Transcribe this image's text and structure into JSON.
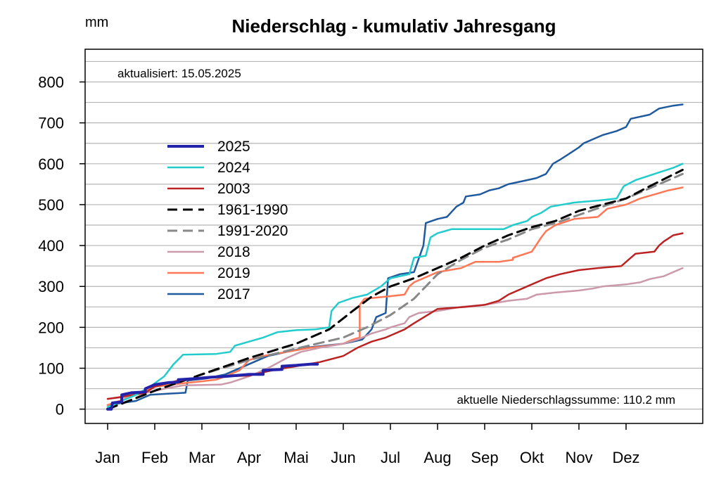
{
  "chart_data": {
    "type": "line",
    "title": "Niederschlag - kumulativ Jahresgang",
    "ylabel": "mm",
    "updated": "aktualisiert: 15.05.2025",
    "summary": "aktuelle Niederschlagssumme: 110.2 mm",
    "ylim": [
      -35,
      880
    ],
    "xlim": [
      0,
      13.2
    ],
    "yticks": [
      0,
      100,
      200,
      300,
      400,
      500,
      600,
      700,
      800
    ],
    "ygrid": [
      0,
      50,
      100,
      150,
      200,
      250,
      300,
      350,
      400,
      450,
      500,
      550,
      600,
      650,
      700,
      750,
      800,
      850
    ],
    "grid": true,
    "xticks": [
      {
        "x": 0,
        "label": "Jan"
      },
      {
        "x": 1,
        "label": "Feb"
      },
      {
        "x": 2,
        "label": "Mar"
      },
      {
        "x": 3,
        "label": "Apr"
      },
      {
        "x": 4,
        "label": "Mai"
      },
      {
        "x": 5,
        "label": "Jun"
      },
      {
        "x": 6,
        "label": "Jul"
      },
      {
        "x": 7,
        "label": "Aug"
      },
      {
        "x": 8,
        "label": "Sep"
      },
      {
        "x": 9,
        "label": "Okt"
      },
      {
        "x": 10,
        "label": "Nov"
      },
      {
        "x": 11,
        "label": "Dez"
      }
    ],
    "legend_position": "upper-left",
    "series": [
      {
        "name": "2025",
        "color": "#2222aa",
        "dash": "",
        "width": 4,
        "points": [
          [
            0,
            0
          ],
          [
            0.08,
            0
          ],
          [
            0.1,
            15
          ],
          [
            0.3,
            18
          ],
          [
            0.3,
            35
          ],
          [
            0.5,
            40
          ],
          [
            0.8,
            42
          ],
          [
            0.8,
            50
          ],
          [
            1,
            60
          ],
          [
            1.3,
            65
          ],
          [
            1.5,
            66
          ],
          [
            1.5,
            72
          ],
          [
            1.9,
            75
          ],
          [
            2.2,
            78
          ],
          [
            2.5,
            80
          ],
          [
            3,
            85
          ],
          [
            3.3,
            85
          ],
          [
            3.3,
            95
          ],
          [
            3.7,
            97
          ],
          [
            3.7,
            105
          ],
          [
            4,
            107
          ],
          [
            4.3,
            110
          ],
          [
            4.45,
            110
          ]
        ]
      },
      {
        "name": "2024",
        "color": "#22cccc",
        "dash": "",
        "width": 2.5,
        "points": [
          [
            0,
            5
          ],
          [
            0.3,
            20
          ],
          [
            0.6,
            35
          ],
          [
            0.9,
            55
          ],
          [
            1.2,
            80
          ],
          [
            1.4,
            110
          ],
          [
            1.6,
            133
          ],
          [
            2.3,
            135
          ],
          [
            2.6,
            140
          ],
          [
            2.7,
            155
          ],
          [
            3,
            165
          ],
          [
            3.3,
            175
          ],
          [
            3.6,
            188
          ],
          [
            4,
            193
          ],
          [
            4.4,
            195
          ],
          [
            4.7,
            200
          ],
          [
            4.75,
            240
          ],
          [
            4.9,
            260
          ],
          [
            5.2,
            272
          ],
          [
            5.5,
            280
          ],
          [
            5.8,
            300
          ],
          [
            6,
            320
          ],
          [
            6.4,
            330
          ],
          [
            6.5,
            370
          ],
          [
            6.75,
            375
          ],
          [
            6.85,
            420
          ],
          [
            7,
            430
          ],
          [
            7.3,
            440
          ],
          [
            8.4,
            440
          ],
          [
            8.6,
            450
          ],
          [
            8.9,
            460
          ],
          [
            9,
            470
          ],
          [
            9.2,
            480
          ],
          [
            9.4,
            495
          ],
          [
            9.9,
            505
          ],
          [
            10.4,
            510
          ],
          [
            10.8,
            515
          ],
          [
            10.95,
            545
          ],
          [
            11.2,
            560
          ],
          [
            11.6,
            575
          ],
          [
            12,
            590
          ],
          [
            12.2,
            600
          ]
        ]
      },
      {
        "name": "2003",
        "color": "#bb2222",
        "dash": "",
        "width": 2.5,
        "points": [
          [
            0,
            25
          ],
          [
            0.3,
            30
          ],
          [
            0.8,
            40
          ],
          [
            1,
            55
          ],
          [
            1.5,
            70
          ],
          [
            2,
            75
          ],
          [
            2.5,
            80
          ],
          [
            3,
            82
          ],
          [
            3.5,
            95
          ],
          [
            4,
            105
          ],
          [
            4.5,
            115
          ],
          [
            5,
            130
          ],
          [
            5.3,
            150
          ],
          [
            5.6,
            165
          ],
          [
            5.9,
            175
          ],
          [
            6.1,
            185
          ],
          [
            6.3,
            195
          ],
          [
            6.5,
            210
          ],
          [
            7,
            245
          ],
          [
            7.6,
            250
          ],
          [
            8,
            255
          ],
          [
            8.3,
            265
          ],
          [
            8.5,
            280
          ],
          [
            8.9,
            300
          ],
          [
            9.3,
            320
          ],
          [
            9.6,
            330
          ],
          [
            10,
            340
          ],
          [
            10.4,
            345
          ],
          [
            10.9,
            350
          ],
          [
            11,
            360
          ],
          [
            11.2,
            380
          ],
          [
            11.6,
            385
          ],
          [
            11.7,
            400
          ],
          [
            11.8,
            410
          ],
          [
            12,
            425
          ],
          [
            12.2,
            430
          ]
        ]
      },
      {
        "name": "1961-1990",
        "color": "#000000",
        "dash": "14,8",
        "width": 3,
        "points": [
          [
            0,
            0
          ],
          [
            1,
            45
          ],
          [
            2,
            85
          ],
          [
            3,
            125
          ],
          [
            4,
            160
          ],
          [
            4.7,
            195
          ],
          [
            5.2,
            240
          ],
          [
            5.6,
            275
          ],
          [
            6,
            300
          ],
          [
            6.5,
            320
          ],
          [
            7,
            345
          ],
          [
            7.5,
            370
          ],
          [
            8,
            400
          ],
          [
            8.5,
            425
          ],
          [
            9,
            445
          ],
          [
            9.5,
            460
          ],
          [
            10,
            485
          ],
          [
            10.5,
            500
          ],
          [
            11,
            515
          ],
          [
            11.5,
            545
          ],
          [
            12.2,
            585
          ]
        ]
      },
      {
        "name": "1991-2020",
        "color": "#888888",
        "dash": "14,8",
        "width": 3,
        "points": [
          [
            0,
            0
          ],
          [
            1,
            45
          ],
          [
            2,
            85
          ],
          [
            3,
            120
          ],
          [
            4,
            148
          ],
          [
            5,
            175
          ],
          [
            5.5,
            200
          ],
          [
            6,
            230
          ],
          [
            6.5,
            270
          ],
          [
            7,
            330
          ],
          [
            7.5,
            365
          ],
          [
            8,
            395
          ],
          [
            8.5,
            415
          ],
          [
            9,
            440
          ],
          [
            9.5,
            455
          ],
          [
            10,
            475
          ],
          [
            10.5,
            495
          ],
          [
            11,
            515
          ],
          [
            11.5,
            540
          ],
          [
            12.2,
            575
          ]
        ]
      },
      {
        "name": "2018",
        "color": "#cc99aa",
        "dash": "",
        "width": 2.5,
        "points": [
          [
            0,
            25
          ],
          [
            0.4,
            30
          ],
          [
            0.9,
            42
          ],
          [
            1.2,
            50
          ],
          [
            1.6,
            58
          ],
          [
            2.4,
            60
          ],
          [
            2.6,
            65
          ],
          [
            3,
            80
          ],
          [
            3.4,
            100
          ],
          [
            3.8,
            125
          ],
          [
            4.1,
            140
          ],
          [
            4.5,
            150
          ],
          [
            5,
            160
          ],
          [
            5.3,
            170
          ],
          [
            5.6,
            185
          ],
          [
            5.9,
            195
          ],
          [
            6,
            200
          ],
          [
            6.3,
            210
          ],
          [
            6.4,
            225
          ],
          [
            6.6,
            235
          ],
          [
            7,
            240
          ],
          [
            7.5,
            250
          ],
          [
            8,
            255
          ],
          [
            8.5,
            265
          ],
          [
            8.9,
            270
          ],
          [
            9.1,
            280
          ],
          [
            9.5,
            285
          ],
          [
            10,
            290
          ],
          [
            10.3,
            295
          ],
          [
            10.5,
            300
          ],
          [
            11,
            305
          ],
          [
            11.3,
            310
          ],
          [
            11.5,
            318
          ],
          [
            11.8,
            325
          ],
          [
            12,
            335
          ],
          [
            12.2,
            345
          ]
        ]
      },
      {
        "name": "2019",
        "color": "#ff7755",
        "dash": "",
        "width": 2.5,
        "points": [
          [
            0,
            10
          ],
          [
            0.5,
            30
          ],
          [
            1,
            55
          ],
          [
            1.5,
            62
          ],
          [
            2,
            68
          ],
          [
            2.3,
            72
          ],
          [
            2.5,
            80
          ],
          [
            2.8,
            95
          ],
          [
            3,
            120
          ],
          [
            3.3,
            130
          ],
          [
            3.8,
            140
          ],
          [
            4.3,
            150
          ],
          [
            4.7,
            155
          ],
          [
            5,
            160
          ],
          [
            5.2,
            170
          ],
          [
            5.35,
            175
          ],
          [
            5.35,
            255
          ],
          [
            5.45,
            270
          ],
          [
            5.9,
            275
          ],
          [
            6.3,
            280
          ],
          [
            6.4,
            300
          ],
          [
            6.5,
            310
          ],
          [
            6.7,
            320
          ],
          [
            7,
            335
          ],
          [
            7.5,
            345
          ],
          [
            7.8,
            360
          ],
          [
            8.3,
            360
          ],
          [
            8.6,
            365
          ],
          [
            8.6,
            370
          ],
          [
            9,
            385
          ],
          [
            9.2,
            420
          ],
          [
            9.3,
            435
          ],
          [
            9.5,
            450
          ],
          [
            9.9,
            465
          ],
          [
            10.4,
            470
          ],
          [
            10.6,
            490
          ],
          [
            11,
            500
          ],
          [
            11.3,
            515
          ],
          [
            11.6,
            525
          ],
          [
            11.9,
            535
          ],
          [
            12.2,
            542
          ]
        ]
      },
      {
        "name": "2017",
        "color": "#1f5a9e",
        "dash": "",
        "width": 2.5,
        "points": [
          [
            0,
            10
          ],
          [
            0.3,
            15
          ],
          [
            0.6,
            20
          ],
          [
            0.9,
            35
          ],
          [
            1.3,
            38
          ],
          [
            1.65,
            40
          ],
          [
            1.7,
            70
          ],
          [
            2.1,
            75
          ],
          [
            2.5,
            85
          ],
          [
            3,
            110
          ],
          [
            3.4,
            130
          ],
          [
            3.8,
            140
          ],
          [
            4.2,
            150
          ],
          [
            4.6,
            155
          ],
          [
            5,
            160
          ],
          [
            5.4,
            170
          ],
          [
            5.6,
            195
          ],
          [
            5.7,
            225
          ],
          [
            5.9,
            235
          ],
          [
            5.95,
            320
          ],
          [
            6.2,
            330
          ],
          [
            6.5,
            335
          ],
          [
            6.7,
            400
          ],
          [
            6.75,
            455
          ],
          [
            7,
            465
          ],
          [
            7.2,
            470
          ],
          [
            7.4,
            495
          ],
          [
            7.55,
            505
          ],
          [
            7.6,
            520
          ],
          [
            7.9,
            525
          ],
          [
            8.1,
            535
          ],
          [
            8.3,
            540
          ],
          [
            8.5,
            550
          ],
          [
            8.9,
            560
          ],
          [
            9.1,
            565
          ],
          [
            9.3,
            575
          ],
          [
            9.45,
            600
          ],
          [
            9.6,
            610
          ],
          [
            9.8,
            625
          ],
          [
            10,
            640
          ],
          [
            10.1,
            650
          ],
          [
            10.3,
            660
          ],
          [
            10.5,
            670
          ],
          [
            10.8,
            680
          ],
          [
            11,
            690
          ],
          [
            11.1,
            710
          ],
          [
            11.5,
            720
          ],
          [
            11.7,
            735
          ],
          [
            12,
            742
          ],
          [
            12.2,
            745
          ]
        ]
      }
    ]
  }
}
